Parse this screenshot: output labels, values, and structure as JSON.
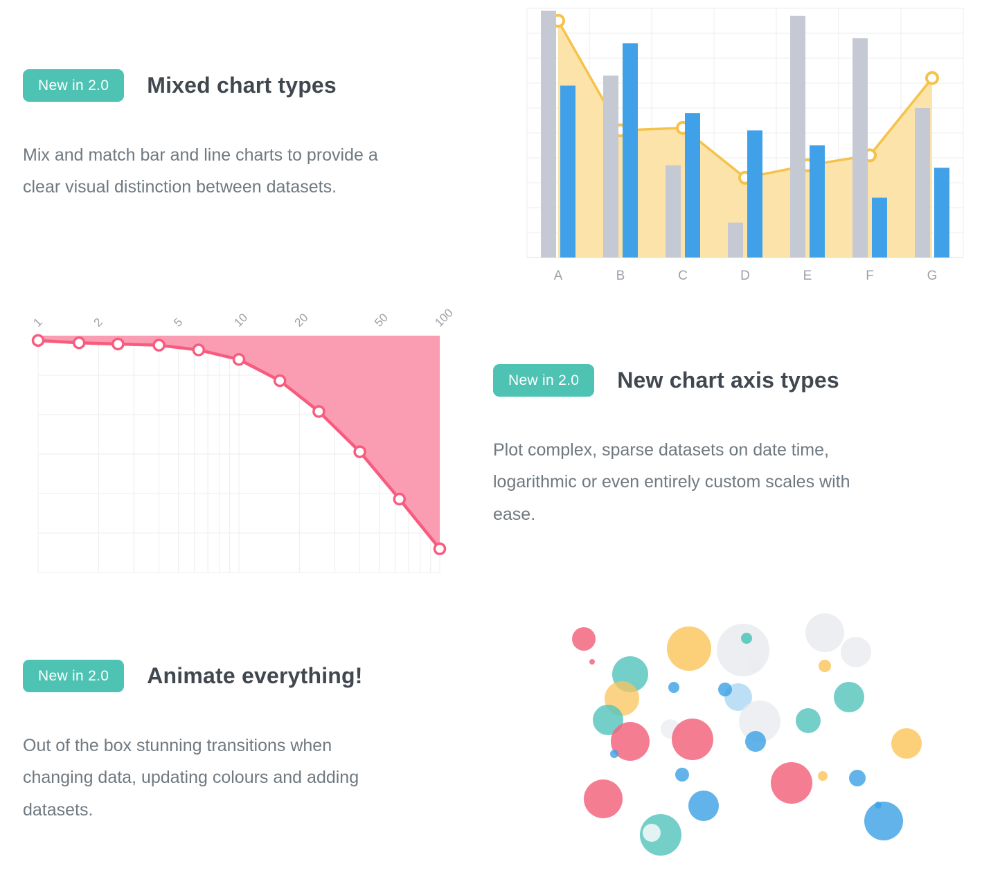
{
  "page": {
    "background": "#ffffff"
  },
  "badge": {
    "label": "New in 2.0",
    "background": "#4ec2b3",
    "text_color": "#ffffff"
  },
  "features": [
    {
      "title": "Mixed chart types",
      "body": "Mix and match bar and line charts to provide a\nclear visual distinction between datasets."
    },
    {
      "title": "New chart axis types",
      "body": "Plot complex, sparse datasets on date time,\nlogarithmic or even entirely custom scales with\nease."
    },
    {
      "title": "Animate everything!",
      "body": "Out of the box stunning transitions when\nchanging data, updating colours and adding\ndatasets."
    }
  ],
  "chart_data": [
    {
      "type": "bar",
      "subtype": "mixed bar + line chart",
      "categories": [
        "A",
        "B",
        "C",
        "D",
        "E",
        "F",
        "G"
      ],
      "series": [
        {
          "name": "grey bars",
          "kind": "bar",
          "color": "#c5c9d4",
          "values": [
            99,
            73,
            37,
            14,
            97,
            88,
            60
          ]
        },
        {
          "name": "blue bars",
          "kind": "bar",
          "color": "#41a1e8",
          "values": [
            69,
            86,
            58,
            51,
            45,
            24,
            36
          ]
        },
        {
          "name": "yellow line",
          "kind": "line",
          "color": "#f5c24b",
          "fill": "#fbe3a9",
          "point_fill": "#ffffff",
          "values": [
            95,
            51,
            52,
            32,
            37,
            41,
            72
          ]
        }
      ],
      "ylim": [
        0,
        100
      ],
      "grid": true,
      "legend": false,
      "grid_color": "#ececec",
      "label_color": "#9ba1a8"
    },
    {
      "type": "line",
      "subtype": "logarithmic x scale, values plotted downward with area filled to top",
      "x": [
        1,
        1.6,
        2.5,
        4,
        6.3,
        10,
        16,
        25,
        40,
        63,
        100
      ],
      "y": [
        2,
        3,
        3.5,
        4,
        6,
        10,
        19,
        32,
        49,
        69,
        90
      ],
      "x_ticks": [
        "1",
        "2",
        "5",
        "10",
        "20",
        "50",
        "100"
      ],
      "x_scale": "log",
      "xlim": [
        1,
        100
      ],
      "line_color": "#f75c7e",
      "fill_color": "#fa9db2",
      "point_fill": "#ffffff",
      "grid": true,
      "legend": false,
      "grid_color": "#ececec",
      "label_color": "#9ba1a8"
    },
    {
      "type": "scatter",
      "subtype": "bubble chart",
      "legend": false,
      "palette": {
        "pink": "#f2607a",
        "teal": "#55c5bc",
        "yellow": "#fbc45c",
        "blue": "#3ea2e5",
        "gray": "#e9ebef",
        "white": "#f7f9fa"
      },
      "points": [
        {
          "x": 25,
          "y": 47,
          "r": 17,
          "c": "pink"
        },
        {
          "x": 37,
          "y": 80,
          "r": 4,
          "c": "pink"
        },
        {
          "x": 92,
          "y": 98,
          "r": 26,
          "c": "teal"
        },
        {
          "x": 80,
          "y": 133,
          "r": 25,
          "c": "yellow",
          "o": 0.75
        },
        {
          "x": 177,
          "y": 61,
          "r": 32,
          "c": "yellow"
        },
        {
          "x": 255,
          "y": 63,
          "r": 38,
          "c": "gray",
          "o": 0.85
        },
        {
          "x": 260,
          "y": 46,
          "r": 8,
          "c": "teal",
          "o": 0.9
        },
        {
          "x": 272,
          "y": 86,
          "r": 9,
          "c": "gray"
        },
        {
          "x": 373,
          "y": 38,
          "r": 28,
          "c": "gray",
          "o": 0.85
        },
        {
          "x": 418,
          "y": 66,
          "r": 22,
          "c": "gray",
          "o": 0.8
        },
        {
          "x": 373,
          "y": 86,
          "r": 9,
          "c": "yellow"
        },
        {
          "x": 408,
          "y": 131,
          "r": 22,
          "c": "teal"
        },
        {
          "x": 155,
          "y": 117,
          "r": 8,
          "c": "blue"
        },
        {
          "x": 229,
          "y": 120,
          "r": 10,
          "c": "blue"
        },
        {
          "x": 248,
          "y": 131,
          "r": 20,
          "c": "blue",
          "o": 0.35
        },
        {
          "x": 60,
          "y": 164,
          "r": 22,
          "c": "teal"
        },
        {
          "x": 92,
          "y": 195,
          "r": 28,
          "c": "pink"
        },
        {
          "x": 69,
          "y": 213,
          "r": 6,
          "c": "blue"
        },
        {
          "x": 150,
          "y": 177,
          "r": 14,
          "c": "gray",
          "o": 0.7
        },
        {
          "x": 182,
          "y": 192,
          "r": 30,
          "c": "pink"
        },
        {
          "x": 279,
          "y": 166,
          "r": 30,
          "c": "gray",
          "o": 0.8
        },
        {
          "x": 273,
          "y": 195,
          "r": 15,
          "c": "blue"
        },
        {
          "x": 349,
          "y": 165,
          "r": 18,
          "c": "teal"
        },
        {
          "x": 491,
          "y": 198,
          "r": 22,
          "c": "yellow"
        },
        {
          "x": 167,
          "y": 243,
          "r": 10,
          "c": "blue"
        },
        {
          "x": 325,
          "y": 255,
          "r": 30,
          "c": "pink"
        },
        {
          "x": 370,
          "y": 245,
          "r": 7,
          "c": "yellow"
        },
        {
          "x": 420,
          "y": 248,
          "r": 12,
          "c": "blue"
        },
        {
          "x": 53,
          "y": 278,
          "r": 28,
          "c": "pink"
        },
        {
          "x": 198,
          "y": 288,
          "r": 22,
          "c": "blue"
        },
        {
          "x": 136,
          "y": 330,
          "r": 30,
          "c": "teal"
        },
        {
          "x": 123,
          "y": 327,
          "r": 13,
          "c": "white",
          "o": 0.85
        },
        {
          "x": 458,
          "y": 310,
          "r": 28,
          "c": "blue"
        },
        {
          "x": 450,
          "y": 287,
          "r": 5,
          "c": "blue"
        }
      ]
    }
  ]
}
